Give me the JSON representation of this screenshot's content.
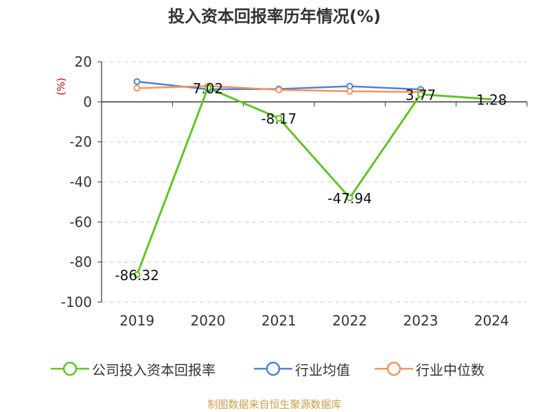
{
  "title": "投入资本回报率历年情况(%)",
  "footer": "制图数据来自恒生聚源数据库",
  "colors": {
    "company": "#5fc424",
    "industry_avg": "#4f7fdb",
    "industry_median": "#f39359",
    "grid": "#c8c8c8",
    "axis": "#333333",
    "unit_label": "#cc0000"
  },
  "chart_data": {
    "type": "line",
    "title": "投入资本回报率历年情况(%)",
    "ylabel": "(%)",
    "xlabel": "",
    "ylim": [
      -100,
      20
    ],
    "yticks": [
      20,
      0,
      -20,
      -40,
      -60,
      -80,
      -100
    ],
    "categories": [
      "2019",
      "2020",
      "2021",
      "2022",
      "2023",
      "2024"
    ],
    "grid": true,
    "legend_position": "bottom",
    "series": [
      {
        "name": "公司投入资本回报率",
        "color_key": "company",
        "values": [
          -86.32,
          7.02,
          -8.17,
          -47.94,
          3.77,
          1.28
        ],
        "labels": [
          "-86.32",
          "7.02",
          "-8.17",
          "-47.94",
          "3.77",
          "1.28"
        ]
      },
      {
        "name": "行业均值",
        "color_key": "industry_avg",
        "values": [
          10.1,
          6.3,
          6.4,
          7.8,
          6.2,
          null
        ]
      },
      {
        "name": "行业中位数",
        "color_key": "industry_median",
        "values": [
          6.8,
          7.9,
          6.0,
          5.3,
          4.9,
          null
        ]
      }
    ]
  }
}
